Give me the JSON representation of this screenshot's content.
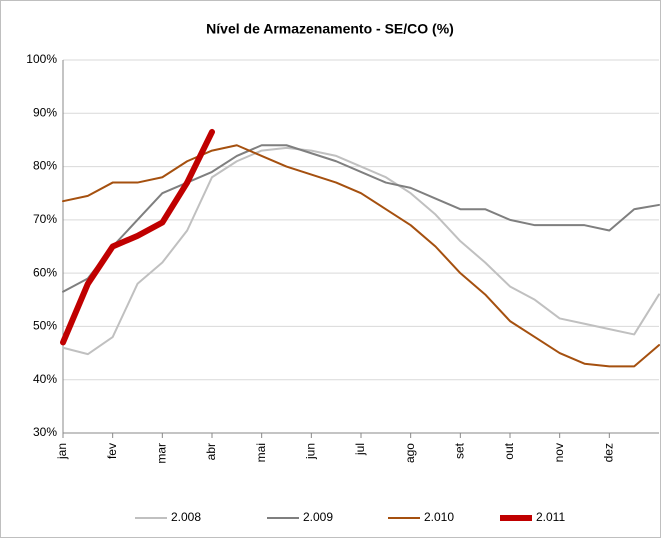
{
  "chart_data": {
    "type": "line",
    "title": "Nível de Armazenamento - SE/CO (%)",
    "categories": [
      "jan",
      null,
      "fev",
      null,
      "mar",
      null,
      "abr",
      null,
      "mai",
      null,
      "jun",
      null,
      "jul",
      null,
      "ago",
      null,
      "set",
      null,
      "out",
      null,
      "nov",
      null,
      "dez",
      null,
      null
    ],
    "series": [
      {
        "name": "2.008",
        "color": "#c0c0c0",
        "width": 2,
        "values": [
          46,
          44.8,
          48,
          58,
          62,
          68,
          78,
          81,
          83,
          83.5,
          83,
          82,
          80,
          78,
          75,
          71,
          66,
          62,
          57.5,
          55,
          51.5,
          50.5,
          49.5,
          48.5,
          56
        ]
      },
      {
        "name": "2.009",
        "color": "#7f7f7f",
        "width": 2,
        "values": [
          56.5,
          59,
          65,
          70,
          75,
          77,
          79,
          82,
          84,
          84,
          82.5,
          81,
          79,
          77,
          76,
          74,
          72,
          72,
          70,
          69,
          69,
          69,
          68,
          72,
          72.8
        ]
      },
      {
        "name": "2.010",
        "color": "#a5500f",
        "width": 2,
        "values": [
          73.5,
          74.5,
          77,
          77,
          78,
          81,
          83,
          84,
          82,
          80,
          78.5,
          77,
          75,
          72,
          69,
          65,
          60,
          56,
          51,
          48,
          45,
          43,
          42.5,
          42.5,
          46.5
        ]
      },
      {
        "name": "2.011",
        "color": "#c00000",
        "width": 6,
        "values": [
          47,
          58,
          65,
          67,
          69.5,
          77,
          86.5,
          null,
          null,
          null,
          null,
          null,
          null,
          null,
          null,
          null,
          null,
          null,
          null,
          null,
          null,
          null,
          null,
          null,
          null
        ]
      }
    ],
    "ylim": [
      30,
      100
    ],
    "yticks": [
      {
        "value": 30,
        "label": "30%"
      },
      {
        "value": 40,
        "label": "40%"
      },
      {
        "value": 50,
        "label": "50%"
      },
      {
        "value": 60,
        "label": "60%"
      },
      {
        "value": 70,
        "label": "70%"
      },
      {
        "value": 80,
        "label": "80%"
      },
      {
        "value": 90,
        "label": "90%"
      },
      {
        "value": 100,
        "label": "100%"
      }
    ],
    "grid": true
  }
}
